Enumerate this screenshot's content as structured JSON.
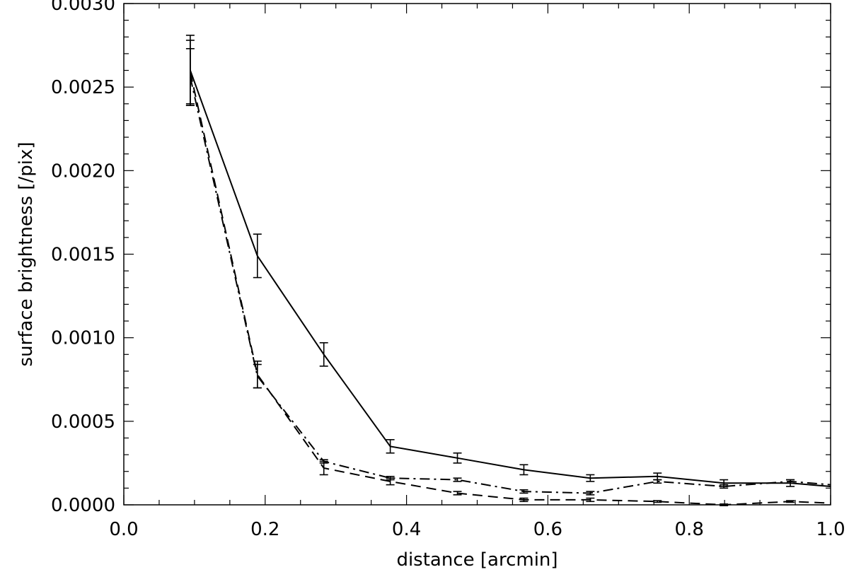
{
  "chart_data": {
    "type": "line",
    "title": "",
    "xlabel": "distance [arcmin]",
    "ylabel": "surface brightness [/pix]",
    "xlim": [
      0.0,
      1.0
    ],
    "ylim": [
      0.0,
      0.003
    ],
    "xticks": [
      "0.0",
      "0.2",
      "0.4",
      "0.6",
      "0.8",
      "1.0"
    ],
    "yticks": [
      "0.0000",
      "0.0005",
      "0.0010",
      "0.0015",
      "0.0020",
      "0.0025",
      "0.0030"
    ],
    "grid": false,
    "series": [
      {
        "style": "solid",
        "points": [
          {
            "x": 0.094,
            "y": 0.0026,
            "err": 0.00021
          },
          {
            "x": 0.189,
            "y": 0.00149,
            "err": 0.00013
          },
          {
            "x": 0.283,
            "y": 0.0009,
            "err": 7e-05
          },
          {
            "x": 0.377,
            "y": 0.00035,
            "err": 4e-05
          },
          {
            "x": 0.472,
            "y": 0.00028,
            "err": 3e-05
          },
          {
            "x": 0.566,
            "y": 0.00021,
            "err": 3e-05
          },
          {
            "x": 0.66,
            "y": 0.00016,
            "err": 2e-05
          },
          {
            "x": 0.755,
            "y": 0.00017,
            "err": 2e-05
          },
          {
            "x": 0.849,
            "y": 0.00013,
            "err": 2e-05
          },
          {
            "x": 0.943,
            "y": 0.00013,
            "err": 2e-05
          },
          {
            "x": 1.0,
            "y": 0.00011
          }
        ]
      },
      {
        "style": "dashdot",
        "points": [
          {
            "x": 0.094,
            "y": 0.00256,
            "err": 0.00017
          },
          {
            "x": 0.189,
            "y": 0.00077,
            "err": 7e-05
          },
          {
            "x": 0.283,
            "y": 0.00026,
            "err": 1e-05
          },
          {
            "x": 0.377,
            "y": 0.00016,
            "err": 1e-05
          },
          {
            "x": 0.472,
            "y": 0.00015,
            "err": 1e-05
          },
          {
            "x": 0.566,
            "y": 8e-05,
            "err": 1e-05
          },
          {
            "x": 0.66,
            "y": 7e-05,
            "err": 1e-05
          },
          {
            "x": 0.755,
            "y": 0.00014,
            "err": 1e-05
          },
          {
            "x": 0.849,
            "y": 0.00011,
            "err": 1e-05
          },
          {
            "x": 0.943,
            "y": 0.00014,
            "err": 1e-05
          },
          {
            "x": 1.0,
            "y": 0.00012
          }
        ]
      },
      {
        "style": "dashed",
        "points": [
          {
            "x": 0.094,
            "y": 0.00259,
            "err": 0.00019
          },
          {
            "x": 0.189,
            "y": 0.00078,
            "err": 8e-05
          },
          {
            "x": 0.283,
            "y": 0.00022,
            "err": 4e-05
          },
          {
            "x": 0.377,
            "y": 0.00014,
            "err": 2e-05
          },
          {
            "x": 0.472,
            "y": 7e-05,
            "err": 1e-05
          },
          {
            "x": 0.566,
            "y": 3e-05,
            "err": 1e-05
          },
          {
            "x": 0.66,
            "y": 3e-05,
            "err": 1e-05
          },
          {
            "x": 0.755,
            "y": 2e-05,
            "err": 5e-06
          },
          {
            "x": 0.849,
            "y": 0.0,
            "err": 5e-06
          },
          {
            "x": 0.943,
            "y": 2e-05,
            "err": 5e-06
          },
          {
            "x": 1.0,
            "y": 1e-05
          }
        ]
      }
    ]
  }
}
